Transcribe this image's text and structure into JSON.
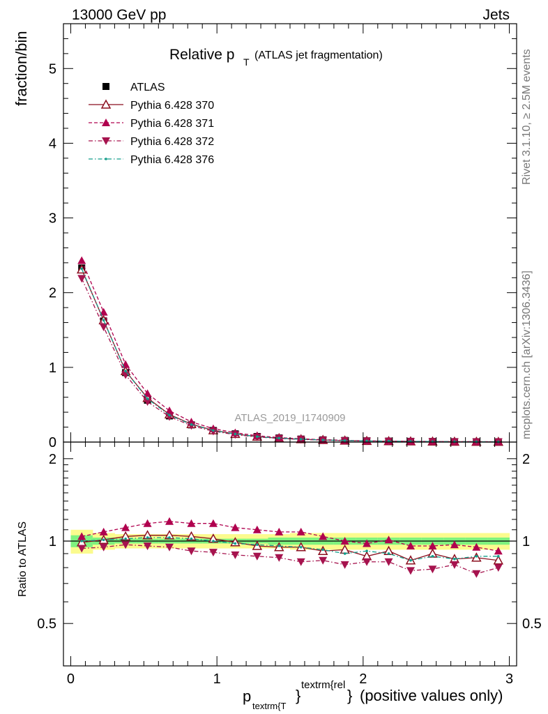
{
  "header": {
    "left": "13000 GeV pp",
    "right": "Jets"
  },
  "side_labels": {
    "rivet": "Rivet 3.1.10, ≥ 2.5M events",
    "mcplots": "mcplots.cern.ch [arXiv:1306.3436]"
  },
  "watermark": "ATLAS_2019_I1740909",
  "title": {
    "main": "Relative p",
    "sub": "T",
    "suffix": "(ATLAS jet fragmentation)"
  },
  "ylabel_main": "fraction/bin",
  "ylabel_ratio": "Ratio to ATLAS",
  "xlabel": {
    "p": "p",
    "sub": "textrm{T",
    "sup": "textrm{rel",
    "brace1": "}",
    "brace2": "}",
    "rest": "(positive values only)"
  },
  "colors": {
    "data": "#000000",
    "p370": "#8b0f1f",
    "p371": "#b0004e",
    "p372": "#a6134e",
    "p376": "#129d8a",
    "band_inner": "#7ff27f",
    "band_outer": "#fbfb8e"
  },
  "chart_data": [
    {
      "type": "scatter",
      "panel": "main",
      "xlim": [
        -0.05,
        3.05
      ],
      "ylim": [
        0,
        5.6
      ],
      "x_ticks": [
        "0",
        "1",
        "2",
        "3"
      ],
      "y_ticks": [
        "0",
        "1",
        "2",
        "3",
        "4",
        "5"
      ],
      "x": [
        0.075,
        0.225,
        0.375,
        0.525,
        0.675,
        0.825,
        0.975,
        1.125,
        1.275,
        1.425,
        1.575,
        1.725,
        1.875,
        2.025,
        2.175,
        2.325,
        2.475,
        2.625,
        2.775,
        2.925
      ],
      "series": [
        {
          "name": "ATLAS",
          "key": "data",
          "values": [
            2.33,
            1.62,
            0.93,
            0.56,
            0.35,
            0.23,
            0.155,
            0.11,
            0.075,
            0.055,
            0.04,
            0.03,
            0.022,
            0.017,
            0.013,
            0.01,
            0.008,
            0.006,
            0.005,
            0.004
          ]
        },
        {
          "name": "Pythia 6.428 370",
          "key": "p370",
          "values": [
            2.31,
            1.63,
            0.95,
            0.59,
            0.37,
            0.24,
            0.158,
            0.108,
            0.072,
            0.052,
            0.038,
            0.028,
            0.02,
            0.015,
            0.012,
            0.009,
            0.007,
            0.005,
            0.004,
            0.003
          ]
        },
        {
          "name": "Pythia 6.428 371",
          "key": "p371",
          "values": [
            2.43,
            1.74,
            1.04,
            0.65,
            0.42,
            0.27,
            0.18,
            0.125,
            0.085,
            0.06,
            0.044,
            0.032,
            0.023,
            0.017,
            0.013,
            0.01,
            0.008,
            0.006,
            0.005,
            0.004
          ]
        },
        {
          "name": "Pythia 6.428 372",
          "key": "p372",
          "values": [
            2.19,
            1.54,
            0.9,
            0.54,
            0.34,
            0.22,
            0.145,
            0.1,
            0.068,
            0.049,
            0.035,
            0.026,
            0.019,
            0.014,
            0.011,
            0.008,
            0.006,
            0.005,
            0.004,
            0.003
          ]
        },
        {
          "name": "Pythia 6.428 376",
          "key": "p376",
          "values": [
            2.32,
            1.63,
            0.95,
            0.58,
            0.36,
            0.235,
            0.155,
            0.108,
            0.073,
            0.053,
            0.038,
            0.028,
            0.02,
            0.015,
            0.012,
            0.009,
            0.007,
            0.005,
            0.004,
            0.003
          ]
        }
      ]
    },
    {
      "type": "line",
      "panel": "ratio",
      "xlim": [
        -0.05,
        3.05
      ],
      "ylim": [
        0.35,
        2.3
      ],
      "x_ticks": [
        "0",
        "1",
        "2",
        "3"
      ],
      "y_ticks": [
        "0.5",
        "1",
        "2"
      ],
      "x": [
        0.075,
        0.225,
        0.375,
        0.525,
        0.675,
        0.825,
        0.975,
        1.125,
        1.275,
        1.425,
        1.575,
        1.725,
        1.875,
        2.025,
        2.175,
        2.325,
        2.475,
        2.625,
        2.775,
        2.925
      ],
      "band_inner": [
        0.05,
        0.03,
        0.02,
        0.02,
        0.02,
        0.02,
        0.02,
        0.02,
        0.02,
        0.03,
        0.03,
        0.03,
        0.03,
        0.03,
        0.03,
        0.03,
        0.03,
        0.03,
        0.03,
        0.03
      ],
      "band_outer": [
        0.1,
        0.07,
        0.06,
        0.06,
        0.06,
        0.06,
        0.06,
        0.06,
        0.06,
        0.06,
        0.07,
        0.07,
        0.07,
        0.07,
        0.07,
        0.07,
        0.07,
        0.07,
        0.07,
        0.07
      ],
      "series": [
        {
          "name": "Pythia 6.428 370",
          "key": "p370",
          "values": [
            0.99,
            1.01,
            1.04,
            1.05,
            1.05,
            1.04,
            1.02,
            0.99,
            0.96,
            0.95,
            0.95,
            0.92,
            0.93,
            0.88,
            0.92,
            0.85,
            0.9,
            0.86,
            0.87,
            0.85
          ]
        },
        {
          "name": "Pythia 6.428 371",
          "key": "p371",
          "values": [
            1.04,
            1.08,
            1.12,
            1.16,
            1.18,
            1.16,
            1.16,
            1.12,
            1.1,
            1.08,
            1.08,
            1.04,
            1.0,
            0.98,
            1.01,
            0.96,
            0.96,
            0.97,
            0.95,
            0.92
          ]
        },
        {
          "name": "Pythia 6.428 372",
          "key": "p372",
          "values": [
            0.94,
            0.95,
            0.97,
            0.96,
            0.95,
            0.92,
            0.91,
            0.89,
            0.88,
            0.87,
            0.84,
            0.85,
            0.82,
            0.84,
            0.84,
            0.78,
            0.79,
            0.82,
            0.76,
            0.8
          ]
        },
        {
          "name": "Pythia 6.428 376",
          "key": "p376",
          "values": [
            1.0,
            1.01,
            1.02,
            1.03,
            1.03,
            1.02,
            1.0,
            0.98,
            0.97,
            0.96,
            0.95,
            0.93,
            0.9,
            0.92,
            0.9,
            0.85,
            0.88,
            0.86,
            0.88,
            0.88
          ]
        }
      ]
    }
  ],
  "legend": {
    "placement": "top-left",
    "entries": [
      {
        "label": "ATLAS",
        "key": "data",
        "marker": "square",
        "dash": ""
      },
      {
        "label": "Pythia 6.428 370",
        "key": "p370",
        "marker": "triangle-open",
        "dash": ""
      },
      {
        "label": "Pythia 6.428 371",
        "key": "p371",
        "marker": "triangle-up",
        "dash": "5,3"
      },
      {
        "label": "Pythia 6.428 372",
        "key": "p372",
        "marker": "triangle-down",
        "dash": "6,3,1.5,3"
      },
      {
        "label": "Pythia 6.428 376",
        "key": "p376",
        "marker": "dot",
        "dash": "6,3,1.5,3"
      }
    ]
  }
}
